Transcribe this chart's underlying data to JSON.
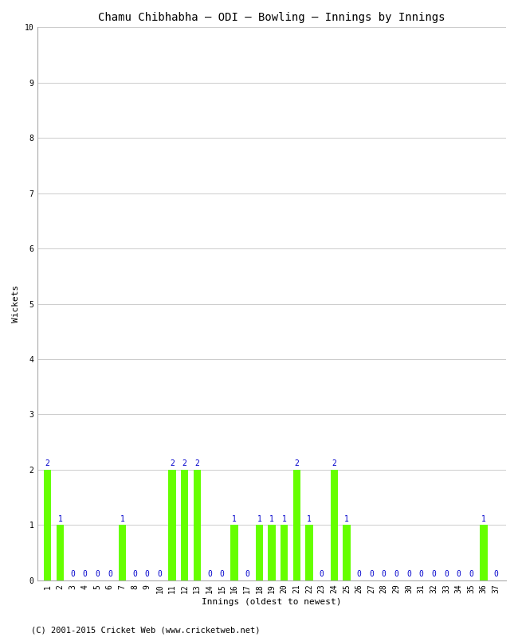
{
  "title": "Chamu Chibhabha – ODI – Bowling – Innings by Innings",
  "xlabel": "Innings (oldest to newest)",
  "ylabel": "Wickets",
  "ylim": [
    0,
    10
  ],
  "yticks": [
    0,
    1,
    2,
    3,
    4,
    5,
    6,
    7,
    8,
    9,
    10
  ],
  "innings": [
    1,
    2,
    3,
    4,
    5,
    6,
    7,
    8,
    9,
    10,
    11,
    12,
    13,
    14,
    15,
    16,
    17,
    18,
    19,
    20,
    21,
    22,
    23,
    24,
    25,
    26,
    27,
    28,
    29,
    30,
    31,
    32,
    33,
    34,
    35,
    36,
    37
  ],
  "wickets": [
    2,
    1,
    0,
    0,
    0,
    0,
    1,
    0,
    0,
    0,
    2,
    2,
    2,
    0,
    0,
    1,
    0,
    1,
    1,
    1,
    2,
    1,
    0,
    2,
    1,
    0,
    0,
    0,
    0,
    0,
    0,
    0,
    0,
    0,
    0,
    1,
    0
  ],
  "bar_color": "#66ff00",
  "label_color": "#0000cc",
  "bg_color": "#ffffff",
  "grid_color": "#cccccc",
  "footer": "(C) 2001-2015 Cricket Web (www.cricketweb.net)",
  "title_fontsize": 10,
  "axis_label_fontsize": 8,
  "tick_fontsize": 7,
  "bar_label_fontsize": 7,
  "footer_fontsize": 7.5
}
